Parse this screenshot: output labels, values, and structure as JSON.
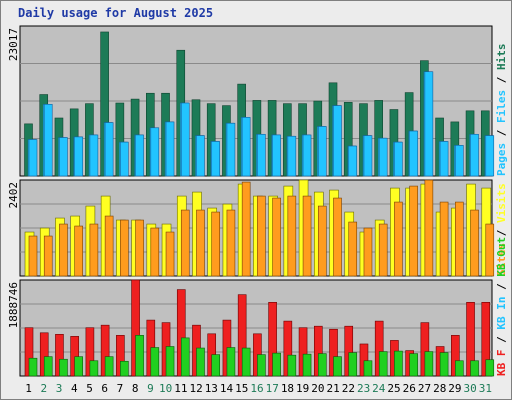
{
  "title": "Daily usage for August 2025",
  "colors": {
    "hits": "#1d7b57",
    "files": "#22c4ff",
    "pages": "#22c4ff",
    "visits": "#ffff22",
    "sites": "#ff9c1e",
    "kbf": "#ee2020",
    "kbin": "#22c4ff",
    "kbout": "#20d020",
    "plot_bg": "#c0c0c0",
    "label_weekday": "#000000",
    "label_weekend": "#1d7b57"
  },
  "chart_data": [
    {
      "type": "bar",
      "panel": "top",
      "ylabel_max": "23017",
      "ymax": 23017,
      "legend": [
        {
          "text": "Pages",
          "color": "#22c4ff"
        },
        {
          "text": " / ",
          "color": "#000000"
        },
        {
          "text": "Files",
          "color": "#22c4ff"
        },
        {
          "text": " / ",
          "color": "#000000"
        },
        {
          "text": "Hits",
          "color": "#1d7b57"
        }
      ],
      "categories": [
        "1",
        "2",
        "3",
        "4",
        "5",
        "6",
        "7",
        "8",
        "9",
        "10",
        "11",
        "12",
        "13",
        "14",
        "15",
        "16",
        "17",
        "18",
        "19",
        "20",
        "21",
        "22",
        "23",
        "24",
        "25",
        "26",
        "27",
        "28",
        "29",
        "30",
        "31"
      ],
      "series": [
        {
          "name": "Hits",
          "values": [
            8000,
            12500,
            8900,
            10300,
            11100,
            22100,
            11200,
            11800,
            12700,
            12700,
            19300,
            11700,
            11100,
            10800,
            14100,
            11600,
            11600,
            11100,
            11100,
            11500,
            14300,
            11300,
            11100,
            11600,
            10200,
            12800,
            17700,
            8900,
            8300,
            10000,
            10000
          ]
        },
        {
          "name": "Files",
          "values": [
            5600,
            11000,
            5900,
            6000,
            6300,
            8200,
            5200,
            6300,
            7400,
            8300,
            11200,
            6200,
            5300,
            8100,
            9000,
            6400,
            6300,
            6100,
            6300,
            7600,
            10800,
            4600,
            6200,
            5800,
            5200,
            6900,
            16000,
            5300,
            4700,
            6400,
            6200
          ]
        },
        {
          "name": "Pages",
          "values": [
            5600,
            11000,
            5900,
            6000,
            6300,
            8200,
            5200,
            6300,
            7400,
            8300,
            11200,
            6200,
            5300,
            8100,
            9000,
            6400,
            6300,
            6100,
            6300,
            7600,
            10800,
            4600,
            6200,
            5800,
            5200,
            6900,
            16000,
            5300,
            4700,
            6400,
            6200
          ]
        }
      ]
    },
    {
      "type": "bar",
      "panel": "middle",
      "ylabel_max": "2402",
      "ymax": 2402,
      "legend": [
        {
          "text": "Sites",
          "color": "#ff9c1e"
        },
        {
          "text": " / ",
          "color": "#000000"
        },
        {
          "text": "Visits",
          "color": "#ffff22"
        }
      ],
      "categories": [
        "1",
        "2",
        "3",
        "4",
        "5",
        "6",
        "7",
        "8",
        "9",
        "10",
        "11",
        "12",
        "13",
        "14",
        "15",
        "16",
        "17",
        "18",
        "19",
        "20",
        "21",
        "22",
        "23",
        "24",
        "25",
        "26",
        "27",
        "28",
        "29",
        "30",
        "31"
      ],
      "series": [
        {
          "name": "Visits",
          "values": [
            1100,
            1200,
            1450,
            1500,
            1750,
            2000,
            1400,
            1400,
            1300,
            1300,
            2000,
            2100,
            1700,
            1800,
            2300,
            2000,
            2000,
            2250,
            2450,
            2100,
            2150,
            1600,
            1100,
            1400,
            2200,
            2200,
            2300,
            1600,
            1700,
            2300,
            2200
          ]
        },
        {
          "name": "Sites",
          "values": [
            1000,
            1000,
            1300,
            1250,
            1300,
            1500,
            1400,
            1400,
            1200,
            1100,
            1650,
            1650,
            1600,
            1650,
            2350,
            2000,
            1950,
            2000,
            2000,
            1750,
            1950,
            1350,
            1200,
            1300,
            1850,
            2250,
            2400,
            1850,
            1850,
            1650,
            1300
          ]
        }
      ]
    },
    {
      "type": "bar",
      "panel": "bottom",
      "ylabel_max": "1888746",
      "ymax": 1888746,
      "legend": [
        {
          "text": "KB F",
          "color": "#ee2020"
        },
        {
          "text": " / ",
          "color": "#000000"
        },
        {
          "text": "KB In",
          "color": "#22c4ff"
        },
        {
          "text": " / ",
          "color": "#000000"
        },
        {
          "text": "KB Out",
          "color": "#20d020"
        }
      ],
      "categories": [
        "1",
        "2",
        "3",
        "4",
        "5",
        "6",
        "7",
        "8",
        "9",
        "10",
        "11",
        "12",
        "13",
        "14",
        "15",
        "16",
        "17",
        "18",
        "19",
        "20",
        "21",
        "22",
        "23",
        "24",
        "25",
        "26",
        "27",
        "28",
        "29",
        "30",
        "31"
      ],
      "series": [
        {
          "name": "KB F",
          "values": [
            950000,
            850000,
            820000,
            780000,
            950000,
            1000000,
            800000,
            1900000,
            1100000,
            1050000,
            1700000,
            1000000,
            830000,
            1100000,
            1600000,
            830000,
            1450000,
            1080000,
            950000,
            980000,
            920000,
            980000,
            630000,
            1080000,
            700000,
            500000,
            1050000,
            580000,
            800000,
            1450000,
            1450000
          ]
        },
        {
          "name": "KB In",
          "values": [
            0,
            0,
            0,
            0,
            0,
            0,
            0,
            0,
            0,
            0,
            0,
            0,
            0,
            0,
            0,
            0,
            0,
            0,
            0,
            0,
            0,
            0,
            0,
            0,
            0,
            0,
            0,
            0,
            0,
            0,
            0
          ]
        },
        {
          "name": "KB Out",
          "values": [
            350000,
            380000,
            330000,
            380000,
            300000,
            380000,
            290000,
            800000,
            560000,
            580000,
            750000,
            550000,
            420000,
            560000,
            550000,
            420000,
            450000,
            410000,
            430000,
            440000,
            380000,
            460000,
            300000,
            480000,
            490000,
            440000,
            480000,
            460000,
            300000,
            300000,
            320000
          ]
        }
      ]
    }
  ]
}
